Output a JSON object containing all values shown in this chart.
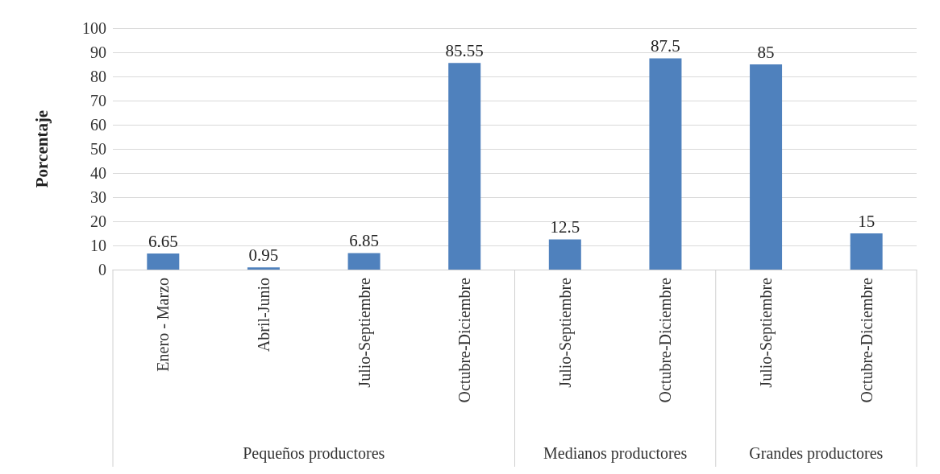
{
  "chart_data": {
    "type": "bar",
    "ylabel": "Porcentaje",
    "categories": [
      "Enero - Marzo",
      "Abril-Junio",
      "Julio-Septiembre",
      "Octubre-Diciembre",
      "Julio-Septiembre",
      "Octubre-Diciembre",
      "Julio-Septiembre",
      "Octubre-Diciembre"
    ],
    "values": [
      6.65,
      0.95,
      6.85,
      85.55,
      12.5,
      87.5,
      85,
      15
    ],
    "color": "#4f81bd",
    "ylim": [
      0,
      100
    ],
    "yticks": [
      0,
      10,
      20,
      30,
      40,
      50,
      60,
      70,
      80,
      90,
      100
    ],
    "grid": "y",
    "data_labels": true,
    "annotations": [
      "Pequeños productores",
      "Medianos productores",
      "Grandes productores"
    ]
  }
}
